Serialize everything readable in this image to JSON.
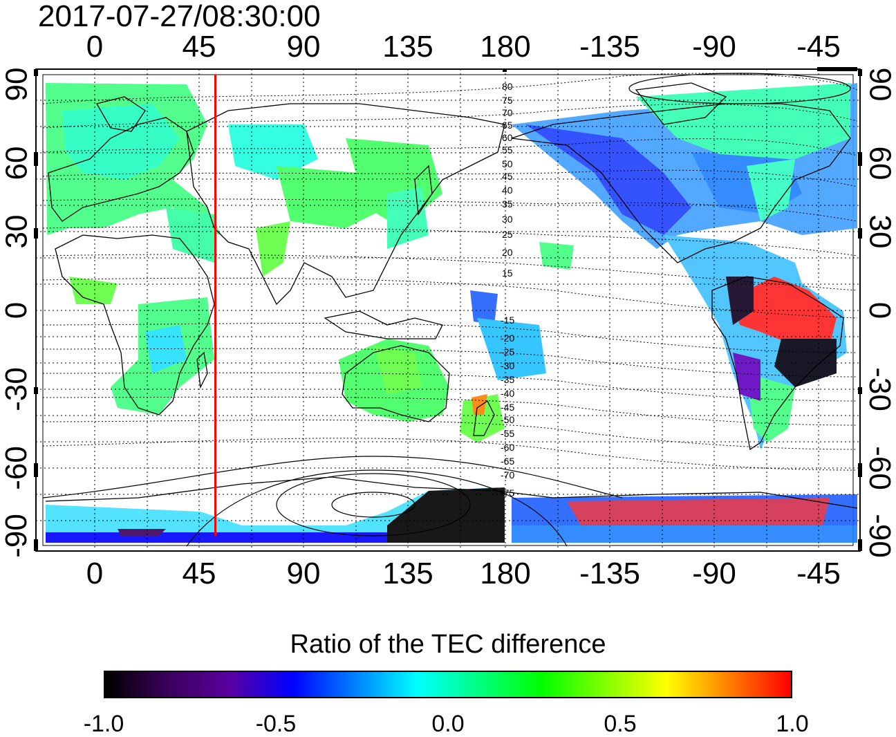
{
  "title": "2017-07-27/08:30:00",
  "x_ticks_top": [
    "0",
    "45",
    "90",
    "135",
    "180",
    "-135",
    "-90",
    "-45"
  ],
  "x_ticks_bottom": [
    "0",
    "45",
    "90",
    "135",
    "180",
    "-135",
    "-90",
    "-45"
  ],
  "y_ticks_left": [
    "90",
    "60",
    "30",
    "0",
    "-30",
    "-60",
    "-90"
  ],
  "y_ticks_right": [
    "90",
    "60",
    "30",
    "0",
    "-30",
    "-60",
    "-90"
  ],
  "contour_labels_north": [
    "80",
    "75",
    "70",
    "65",
    "60",
    "55",
    "50",
    "45",
    "40",
    "35",
    "30",
    "25",
    "20",
    "15"
  ],
  "contour_labels_south": [
    "-15",
    "-20",
    "-25",
    "-30",
    "-35",
    "-40",
    "-45",
    "-50",
    "-55",
    "-60",
    "-65",
    "-70",
    "-75"
  ],
  "colorbar": {
    "title": "Ratio of the TEC difference",
    "ticks": [
      "-1.0",
      "-0.5",
      "0.0",
      "0.5",
      "1.0"
    ],
    "range": [
      -1.0,
      1.0
    ],
    "stops": [
      "#000000",
      "#3a005a",
      "#5a00a0",
      "#0000ff",
      "#0080ff",
      "#00ffff",
      "#00ff80",
      "#00ff00",
      "#80ff00",
      "#ffff00",
      "#ff8000",
      "#ff0000"
    ]
  },
  "marker_line": {
    "longitude": 52,
    "color": "#ff0000"
  },
  "colors": {
    "grid": "#000000",
    "coast": "#000000",
    "background": "#ffffff"
  }
}
